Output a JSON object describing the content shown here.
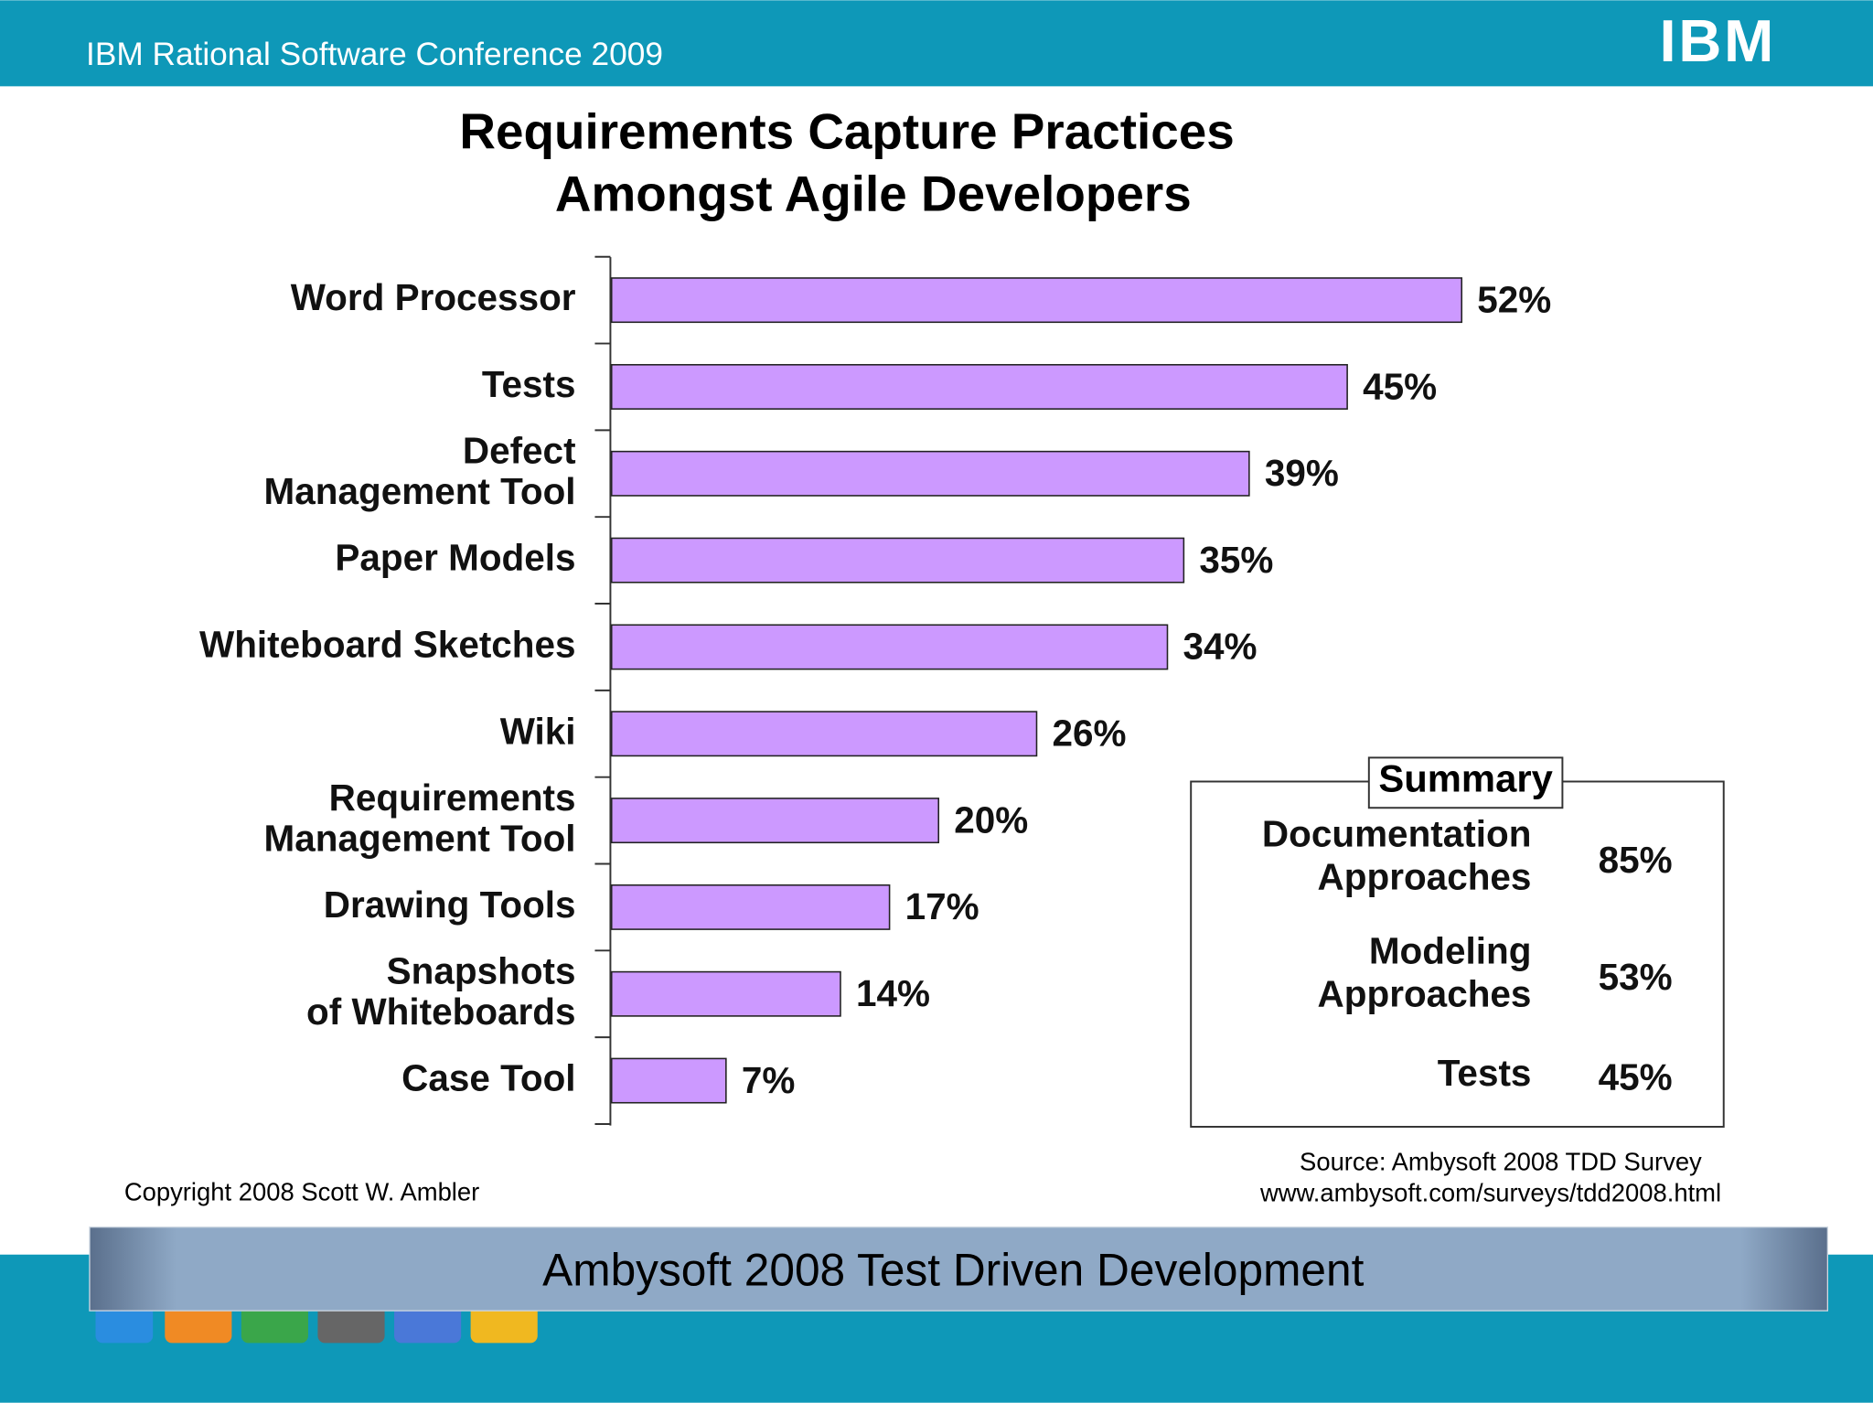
{
  "header": {
    "title": "IBM Rational Software Conference 2009",
    "logo": "IBM"
  },
  "chart_data": {
    "type": "hbar",
    "title": [
      "Requirements Capture Practices",
      "Amongst Agile Developers"
    ],
    "categories": [
      "Word Processor",
      "Tests",
      "Defect\nManagement Tool",
      "Paper Models",
      "Whiteboard Sketches",
      "Wiki",
      "Requirements\nManagement Tool",
      "Drawing Tools",
      "Snapshots\nof Whiteboards",
      "Case Tool"
    ],
    "values": [
      52,
      45,
      39,
      35,
      34,
      26,
      20,
      17,
      14,
      7
    ],
    "value_labels": [
      "52%",
      "45%",
      "39%",
      "35%",
      "34%",
      "26%",
      "20%",
      "17%",
      "14%",
      "7%"
    ],
    "color": "#cc99ff",
    "xlim": [
      0,
      70
    ]
  },
  "summary": {
    "title": "Summary",
    "rows": [
      {
        "label": "Documentation\nApproaches",
        "value": "85%"
      },
      {
        "label": "Modeling\nApproaches",
        "value": "53%"
      },
      {
        "label": "Tests",
        "value": "45%"
      }
    ]
  },
  "source": [
    "Source: Ambysoft 2008 TDD Survey",
    "www.ambysoft.com/surveys/tdd2008.html"
  ],
  "copyright": "Copyright 2008 Scott W. Ambler",
  "footer": "Ambysoft 2008 Test Driven Development"
}
